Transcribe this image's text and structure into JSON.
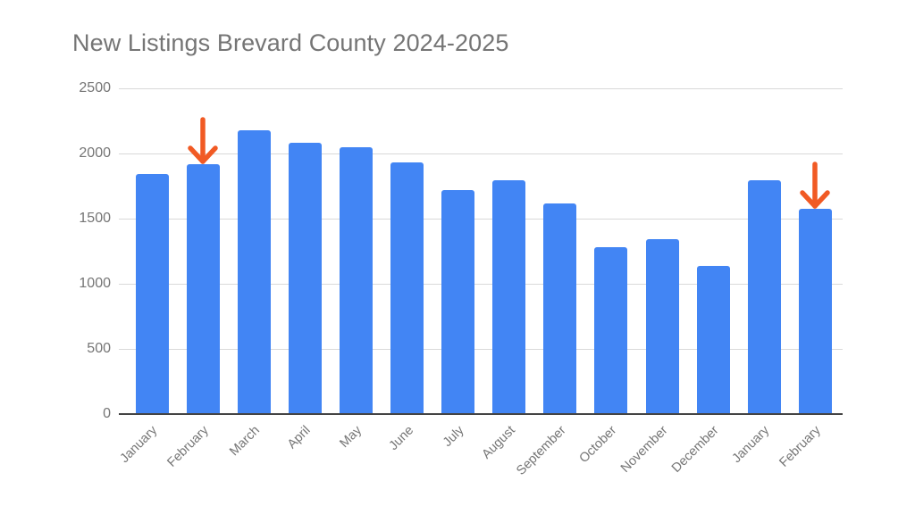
{
  "chart_data": {
    "type": "bar",
    "title": "New Listings Brevard County 2024-2025",
    "xlabel": "",
    "ylabel": "",
    "categories": [
      "January",
      "February",
      "March",
      "April",
      "May",
      "June",
      "July",
      "August",
      "September",
      "October",
      "November",
      "December",
      "January",
      "February"
    ],
    "series": [
      {
        "name": "New Listings",
        "color": "#4285F4",
        "values": [
          1840,
          1920,
          2180,
          2080,
          2045,
          1930,
          1720,
          1795,
          1615,
          1280,
          1345,
          1135,
          1795,
          1575
        ]
      }
    ],
    "ylim": [
      0,
      2500
    ],
    "yticks": [
      0,
      500,
      1000,
      1500,
      2000,
      2500
    ],
    "grid": true,
    "legend": "none",
    "annotations": [
      {
        "type": "arrow",
        "target_index": 1,
        "label": "February 2024",
        "color": "#F15A24"
      },
      {
        "type": "arrow",
        "target_index": 13,
        "label": "February 2025",
        "color": "#F15A24"
      }
    ]
  },
  "colors": {
    "bar": "#4285F4",
    "arrow": "#F15A24",
    "text": "#757575",
    "grid": "#D9D9D9",
    "axis": "#444444"
  }
}
